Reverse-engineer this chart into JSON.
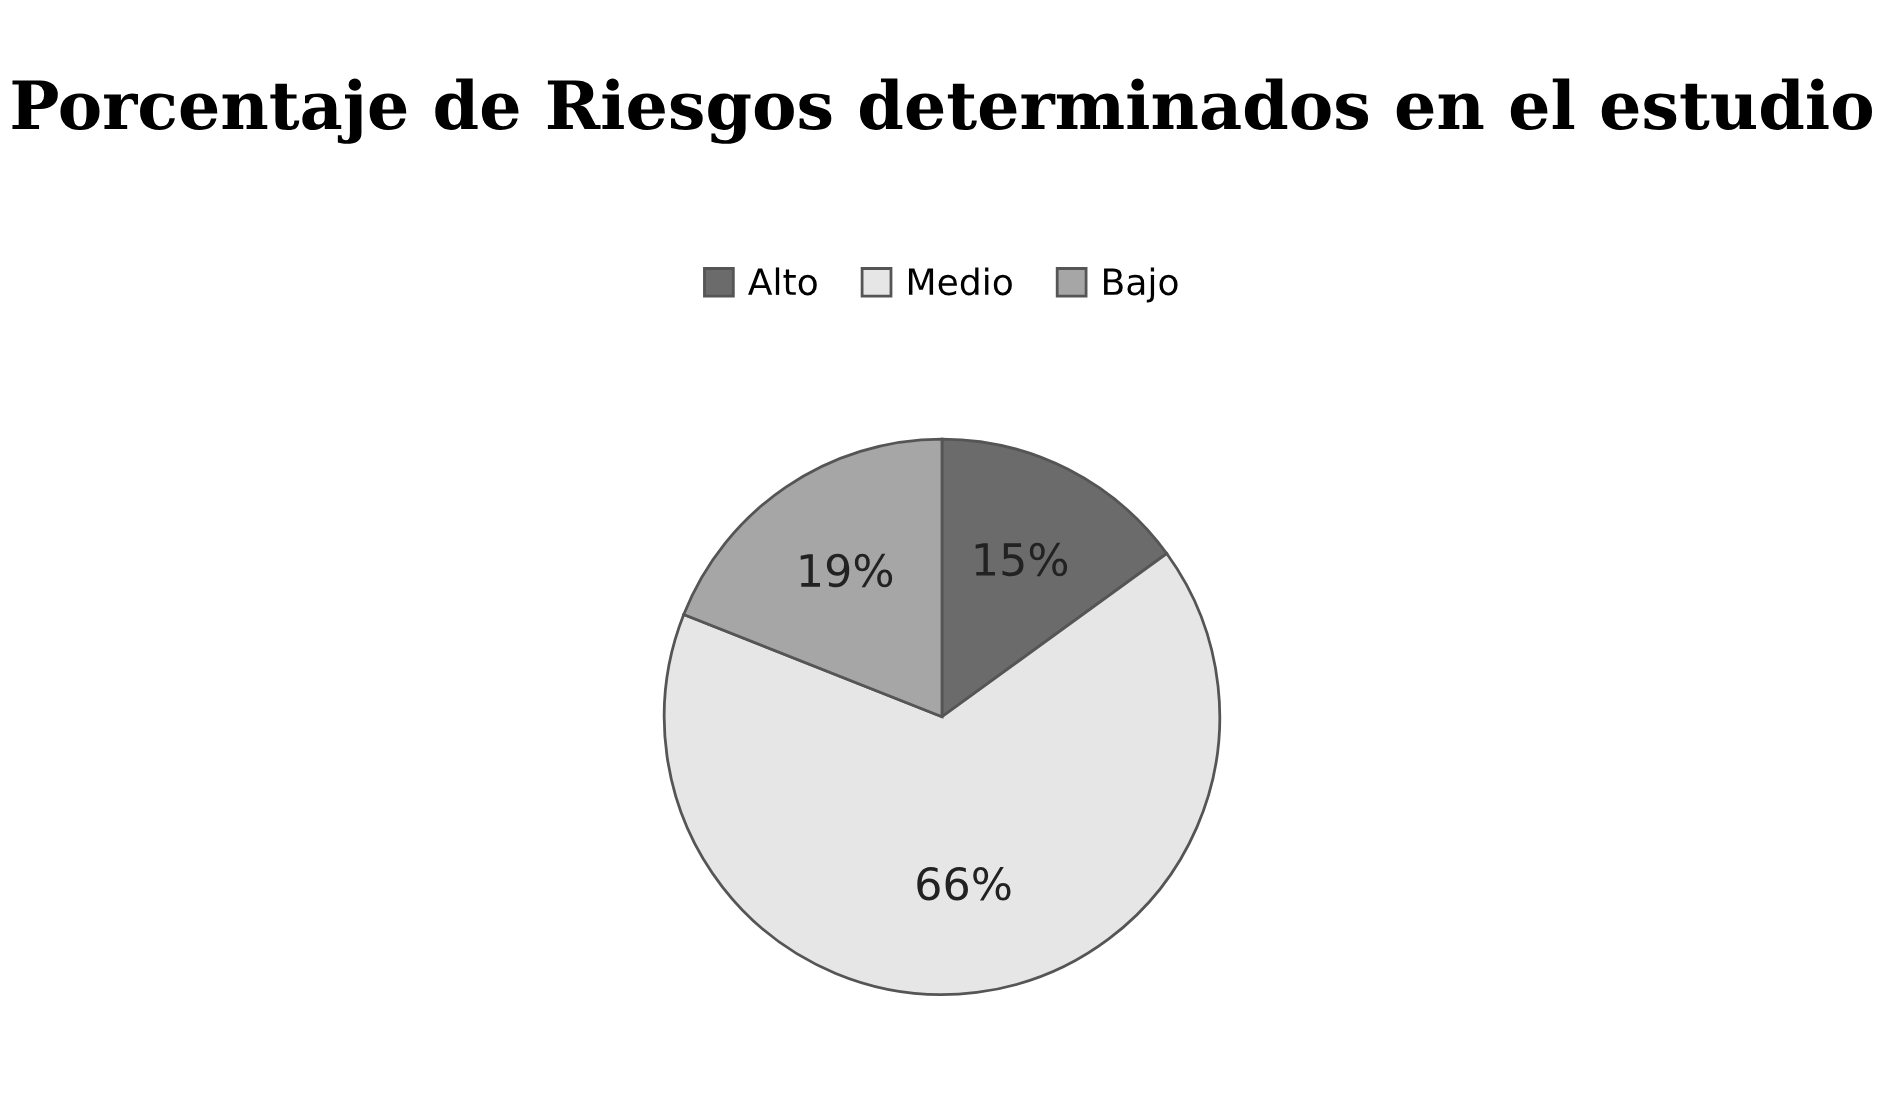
{
  "chart_data": {
    "type": "pie",
    "title": "Porcentaje de Riesgos determinados en el estudio",
    "categories": [
      "Alto",
      "Medio",
      "Bajo"
    ],
    "values": [
      15,
      66,
      19
    ],
    "colors": [
      "#6b6b6b",
      "#e6e6e6",
      "#a6a6a6"
    ],
    "value_labels": [
      "15%",
      "66%",
      "19%"
    ],
    "legend": "top"
  }
}
